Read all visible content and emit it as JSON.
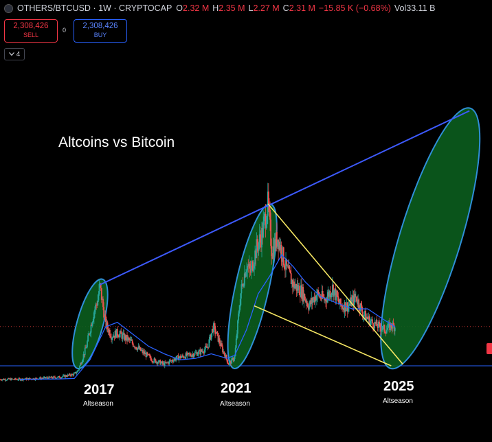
{
  "header": {
    "symbol": "OTHERS/BTCUSD",
    "interval": "1W",
    "source": "CRYPTOCAP",
    "open_label": "O",
    "open": "2.32 M",
    "high_label": "H",
    "high": "2.35 M",
    "low_label": "L",
    "low": "2.27 M",
    "close_label": "C",
    "close": "2.31 M",
    "change": "−15.85 K (−0.68%)",
    "volume_label": "Vol",
    "volume": "33.11 B"
  },
  "trade": {
    "sell_price": "2,308,426",
    "sell_label": "SELL",
    "spread": "0",
    "buy_price": "2,308,426",
    "buy_label": "BUY"
  },
  "indicators_toggle": {
    "count": "4"
  },
  "annotations": {
    "title": "Altcoins vs Bitcoin",
    "cycles": [
      {
        "year": "2017",
        "label": "Altseason"
      },
      {
        "year": "2021",
        "label": "Altseason"
      },
      {
        "year": "2025",
        "label": "Altseason"
      }
    ]
  },
  "colors": {
    "background": "#000000",
    "up": "#26a69a",
    "down": "#ef5350",
    "moving_average": "#2962ff",
    "trendline_upper": "#3d5afe",
    "wedge_lines": "#f5e663",
    "altseason_ellipse_fill": "#0b5d1e",
    "altseason_ellipse_stroke": "#2f8fd8",
    "support_line": "#2962ff"
  },
  "chart_data": {
    "type": "candlestick",
    "symbol": "OTHERS/BTCUSD",
    "interval": "1W",
    "x_unit": "year",
    "y_unit": "OTHERS market cap in BTC (millions)",
    "price_path": [
      [
        2015.0,
        0.55
      ],
      [
        2015.5,
        0.55
      ],
      [
        2016.0,
        0.58
      ],
      [
        2016.5,
        0.62
      ],
      [
        2016.9,
        0.72
      ],
      [
        2017.0,
        0.85
      ],
      [
        2017.2,
        1.6
      ],
      [
        2017.4,
        2.8
      ],
      [
        2017.5,
        3.2
      ],
      [
        2017.55,
        3.7
      ],
      [
        2017.7,
        2.4
      ],
      [
        2017.85,
        2.0
      ],
      [
        2018.0,
        2.1
      ],
      [
        2018.3,
        1.85
      ],
      [
        2018.6,
        1.5
      ],
      [
        2018.9,
        1.2
      ],
      [
        2019.2,
        1.05
      ],
      [
        2019.5,
        1.25
      ],
      [
        2019.8,
        1.35
      ],
      [
        2020.1,
        1.45
      ],
      [
        2020.3,
        1.6
      ],
      [
        2020.45,
        2.3
      ],
      [
        2020.55,
        2.0
      ],
      [
        2020.7,
        1.5
      ],
      [
        2020.85,
        1.05
      ],
      [
        2021.0,
        1.3
      ],
      [
        2021.15,
        3.4
      ],
      [
        2021.3,
        4.4
      ],
      [
        2021.4,
        4.1
      ],
      [
        2021.55,
        4.9
      ],
      [
        2021.7,
        5.4
      ],
      [
        2021.85,
        6.4
      ],
      [
        2021.95,
        4.8
      ],
      [
        2022.1,
        5.3
      ],
      [
        2022.3,
        4.3
      ],
      [
        2022.5,
        3.7
      ],
      [
        2022.7,
        3.5
      ],
      [
        2022.9,
        3.0
      ],
      [
        2023.1,
        3.4
      ],
      [
        2023.3,
        3.2
      ],
      [
        2023.5,
        3.6
      ],
      [
        2023.7,
        3.0
      ],
      [
        2023.9,
        3.0
      ],
      [
        2024.1,
        3.3
      ],
      [
        2024.3,
        2.7
      ],
      [
        2024.5,
        2.45
      ],
      [
        2024.7,
        2.3
      ],
      [
        2024.85,
        2.2
      ],
      [
        2025.0,
        2.35
      ],
      [
        2025.1,
        2.31
      ]
    ],
    "moving_average": [
      [
        2015.5,
        0.55
      ],
      [
        2016.5,
        0.56
      ],
      [
        2016.9,
        0.58
      ],
      [
        2017.3,
        1.2
      ],
      [
        2017.7,
        2.3
      ],
      [
        2018.0,
        2.45
      ],
      [
        2018.4,
        2.05
      ],
      [
        2018.8,
        1.65
      ],
      [
        2019.2,
        1.4
      ],
      [
        2019.6,
        1.2
      ],
      [
        2020.0,
        1.25
      ],
      [
        2020.4,
        1.4
      ],
      [
        2020.8,
        1.25
      ],
      [
        2021.0,
        1.35
      ],
      [
        2021.3,
        2.2
      ],
      [
        2021.6,
        3.4
      ],
      [
        2021.9,
        4.0
      ],
      [
        2022.2,
        4.7
      ],
      [
        2022.5,
        4.3
      ],
      [
        2022.8,
        3.8
      ],
      [
        2023.2,
        3.3
      ],
      [
        2023.6,
        3.1
      ],
      [
        2024.0,
        2.9
      ],
      [
        2024.4,
        2.9
      ],
      [
        2024.8,
        2.55
      ],
      [
        2025.1,
        2.3
      ]
    ],
    "last_close": 2.31,
    "support_level": 1.0,
    "drawings": {
      "upper_trendline": [
        [
          2017.55,
          3.7
        ],
        [
          2027.0,
          9.5
        ]
      ],
      "wedge_upper": [
        [
          2021.85,
          6.4
        ],
        [
          2025.3,
          1.05
        ]
      ],
      "wedge_lower": [
        [
          2021.5,
          3.0
        ],
        [
          2025.0,
          1.0
        ]
      ],
      "altseason_ellipses": [
        {
          "label": "2017",
          "from": [
            2017.0,
            1.0
          ],
          "to": [
            2017.6,
            3.8
          ]
        },
        {
          "label": "2021",
          "from": [
            2021.0,
            1.0
          ],
          "to": [
            2021.9,
            6.3
          ]
        },
        {
          "label": "2025",
          "from": [
            2025.0,
            1.0
          ],
          "to": [
            2027.0,
            9.5
          ]
        }
      ]
    }
  }
}
